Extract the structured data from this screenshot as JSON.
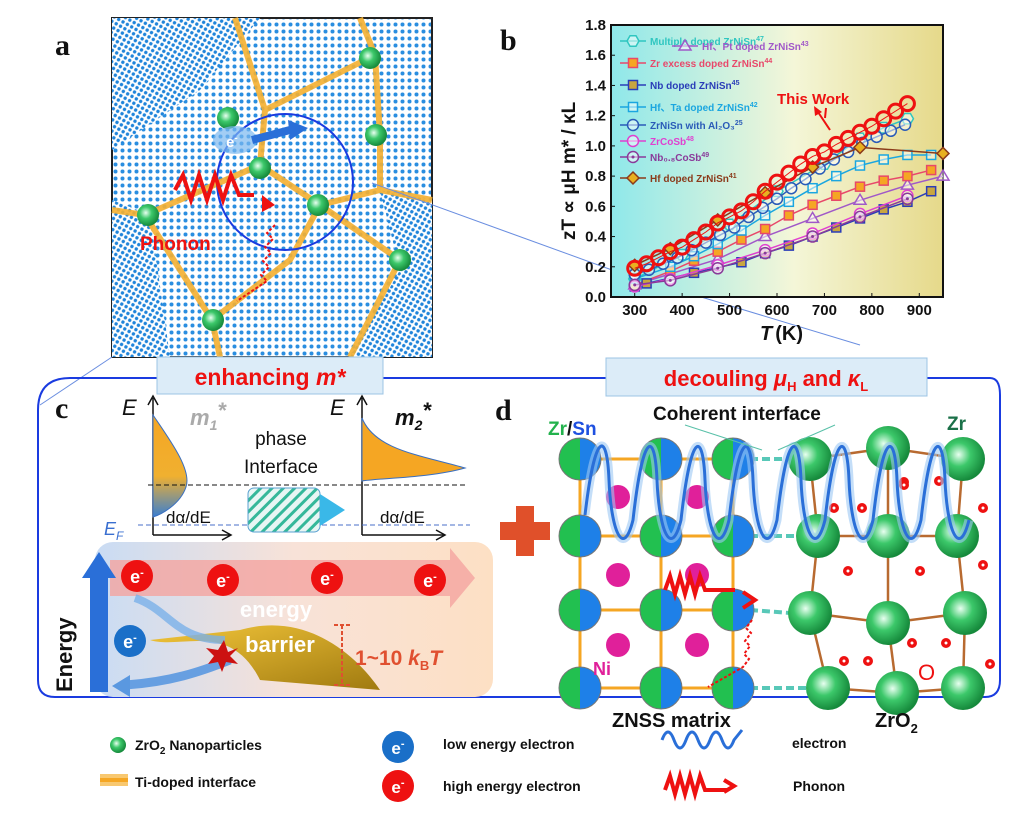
{
  "panels": {
    "a": "a",
    "b": "b",
    "c": "c",
    "d": "d"
  },
  "panel_a": {
    "electron": "e",
    "electron_sup": "-",
    "phonon": "Phonon"
  },
  "chart_data": {
    "type": "line",
    "xlabel": "T (K)",
    "xlabel_italic": "T",
    "xlabel_unit": "(K)",
    "ylabel": "zT ∝ μH m* / κL",
    "xlim": [
      250,
      950
    ],
    "ylim": [
      0.0,
      1.8
    ],
    "xticks": [
      300,
      400,
      500,
      600,
      700,
      800,
      900
    ],
    "yticks": [
      0.0,
      0.2,
      0.4,
      0.6,
      0.8,
      1.0,
      1.2,
      1.4,
      1.6,
      1.8
    ],
    "grid": false,
    "legend_position": "top-left",
    "annotation": "This Work",
    "background": "gradient cyan-to-yellow",
    "series": [
      {
        "name": "Multiple doped ZrNiSn",
        "ref": "47",
        "color": "#2fc6c0",
        "marker": "hexagon",
        "x": [
          300,
          400,
          500,
          600,
          700,
          775,
          825,
          875
        ],
        "y": [
          0.12,
          0.28,
          0.48,
          0.7,
          0.88,
          1.05,
          1.12,
          1.18
        ]
      },
      {
        "name": "Hf、Pt doped ZrNiSn",
        "ref": "43",
        "color": "#a058c8",
        "marker": "triangle",
        "x": [
          300,
          475,
          575,
          675,
          775,
          875,
          950
        ],
        "y": [
          0.08,
          0.25,
          0.4,
          0.52,
          0.64,
          0.74,
          0.8
        ]
      },
      {
        "name": "Zr excess doped ZrNiSn",
        "ref": "44",
        "color": "#e8486a",
        "marker": "square",
        "fill": "#f5a623",
        "x": [
          300,
          375,
          425,
          475,
          525,
          575,
          625,
          675,
          725,
          775,
          825,
          875,
          925
        ],
        "y": [
          0.08,
          0.17,
          0.24,
          0.3,
          0.38,
          0.45,
          0.54,
          0.61,
          0.67,
          0.73,
          0.77,
          0.8,
          0.84
        ]
      },
      {
        "name": "Nb doped ZrNiSn",
        "ref": "45",
        "color": "#2a3db8",
        "marker": "square",
        "fill": "#c9a640",
        "x": [
          300,
          325,
          425,
          525,
          575,
          625,
          675,
          725,
          775,
          825,
          875,
          925
        ],
        "y": [
          0.07,
          0.09,
          0.16,
          0.23,
          0.29,
          0.34,
          0.4,
          0.46,
          0.52,
          0.58,
          0.63,
          0.7
        ]
      },
      {
        "name": "Hf、Ta doped ZrNiSn",
        "ref": "42",
        "color": "#1aa6e0",
        "marker": "square",
        "x": [
          300,
          375,
          425,
          475,
          525,
          575,
          625,
          675,
          725,
          775,
          825,
          875,
          925
        ],
        "y": [
          0.12,
          0.2,
          0.27,
          0.35,
          0.44,
          0.54,
          0.63,
          0.72,
          0.8,
          0.87,
          0.91,
          0.94,
          0.94
        ]
      },
      {
        "name": "ZrNiSn with Al2O3",
        "ref": "25",
        "color": "#2a5bb8",
        "marker": "circle",
        "x": [
          300,
          330,
          360,
          390,
          420,
          450,
          480,
          510,
          540,
          570,
          600,
          630,
          660,
          690,
          720,
          750,
          780,
          810,
          840,
          870
        ],
        "y": [
          0.15,
          0.18,
          0.22,
          0.26,
          0.31,
          0.36,
          0.41,
          0.46,
          0.53,
          0.59,
          0.65,
          0.72,
          0.78,
          0.85,
          0.91,
          0.96,
          1.02,
          1.06,
          1.1,
          1.14
        ]
      },
      {
        "name": "ZrCoSb",
        "ref": "48",
        "color": "#e040d0",
        "marker": "circle",
        "x": [
          300,
          375,
          475,
          575,
          675,
          775,
          875
        ],
        "y": [
          0.07,
          0.12,
          0.21,
          0.31,
          0.42,
          0.55,
          0.67
        ]
      },
      {
        "name": "Nb0.8CoSb",
        "ref": "49",
        "color": "#8a3a9a",
        "marker": "circle-dot",
        "x": [
          300,
          375,
          475,
          575,
          675,
          775,
          875
        ],
        "y": [
          0.08,
          0.11,
          0.19,
          0.29,
          0.4,
          0.53,
          0.65
        ]
      },
      {
        "name": "Hf doped ZrNiSn",
        "ref": "41",
        "color": "#8b3a1a",
        "marker": "diamond",
        "fill": "#e8b020",
        "x": [
          300,
          375,
          475,
          575,
          675,
          775,
          950
        ],
        "y": [
          0.21,
          0.32,
          0.51,
          0.69,
          0.86,
          0.99,
          0.95
        ]
      },
      {
        "name": "This Work",
        "color": "#ee1111",
        "marker": "circle-open-thick",
        "x": [
          300,
          325,
          350,
          375,
          400,
          425,
          450,
          475,
          500,
          525,
          550,
          575,
          600,
          625,
          650,
          675,
          700,
          725,
          750,
          775,
          800,
          825,
          850,
          875
        ],
        "y": [
          0.19,
          0.22,
          0.26,
          0.3,
          0.33,
          0.38,
          0.43,
          0.49,
          0.53,
          0.57,
          0.63,
          0.7,
          0.76,
          0.82,
          0.88,
          0.93,
          0.96,
          1.01,
          1.05,
          1.09,
          1.13,
          1.18,
          1.23,
          1.28
        ]
      }
    ]
  },
  "banners": {
    "c_title": "enhancing ",
    "c_title_m": "m*",
    "d_title_1": "decouling ",
    "d_mu": "μ",
    "d_mu_sub": "H",
    "d_and": " and ",
    "d_kappa": "κ",
    "d_kappa_sub": "L"
  },
  "panel_c": {
    "E": "E",
    "m1": "m",
    "m1_sub": "1",
    "m2": "m",
    "m2_sub": "2",
    "star": "*",
    "phase": "phase",
    "interface": "Interface",
    "dade": "dα/dE",
    "EF": "E",
    "EF_sub": "F",
    "energy_axis": "Energy",
    "e": "e",
    "e_sup": "-",
    "energy": "energy",
    "barrier": "barrier",
    "range": "1~10 ",
    "kB": "k",
    "kB_sub": "B",
    "T": "T"
  },
  "panel_d": {
    "zr": "Zr",
    "slash": "/",
    "sn": "Sn",
    "coherent": "Coherent interface",
    "zr_right": "Zr",
    "ni": "Ni",
    "o": "O",
    "znss": "ZNSS matrix",
    "zro2": "ZrO",
    "zro2_sub": "2"
  },
  "legend": {
    "nanoparticles": "ZrO",
    "nanoparticles_sub": "2",
    "nanoparticles_rest": " Nanoparticles",
    "interface": "Ti-doped interface",
    "low": "low energy electron",
    "high": "high energy electron",
    "electron": "electron",
    "phonon": "Phonon",
    "e": "e",
    "e_sup": "-"
  },
  "colors": {
    "frame": "#1a3be0",
    "red": "#ee1111",
    "orange": "#f5a623",
    "green": "#22b24c",
    "blue": "#1e6fd9",
    "banner_bg": "#dcecf8"
  }
}
